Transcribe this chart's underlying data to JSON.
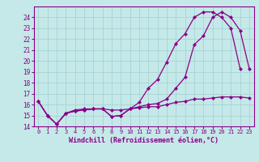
{
  "xlabel": "Windchill (Refroidissement éolien,°C)",
  "background_color": "#c5e8e8",
  "grid_color": "#a8d4d4",
  "line_color": "#880088",
  "x": [
    0,
    1,
    2,
    3,
    4,
    5,
    6,
    7,
    8,
    9,
    10,
    11,
    12,
    13,
    14,
    15,
    16,
    17,
    18,
    19,
    20,
    21,
    22,
    23
  ],
  "line1": [
    16.3,
    15.0,
    14.2,
    15.2,
    15.4,
    15.5,
    15.6,
    15.6,
    14.9,
    15.0,
    15.6,
    15.8,
    16.0,
    16.1,
    16.5,
    17.5,
    18.5,
    21.5,
    22.3,
    24.0,
    24.5,
    24.0,
    22.8,
    19.3
  ],
  "line2": [
    16.3,
    15.0,
    14.2,
    15.2,
    15.4,
    15.5,
    15.6,
    15.6,
    14.9,
    15.0,
    15.6,
    16.2,
    17.5,
    18.3,
    19.9,
    21.6,
    22.5,
    24.0,
    24.5,
    24.5,
    24.0,
    23.0,
    19.3,
    null
  ],
  "line3": [
    16.3,
    15.0,
    14.2,
    15.2,
    15.5,
    15.6,
    15.6,
    15.6,
    15.5,
    15.5,
    15.6,
    15.7,
    15.8,
    15.8,
    16.0,
    16.2,
    16.3,
    16.5,
    16.5,
    16.6,
    16.7,
    16.7,
    16.7,
    16.6
  ],
  "ylim": [
    14,
    25
  ],
  "xlim": [
    -0.5,
    23.5
  ],
  "yticks": [
    14,
    15,
    16,
    17,
    18,
    19,
    20,
    21,
    22,
    23,
    24
  ],
  "xticks": [
    0,
    1,
    2,
    3,
    4,
    5,
    6,
    7,
    8,
    9,
    10,
    11,
    12,
    13,
    14,
    15,
    16,
    17,
    18,
    19,
    20,
    21,
    22,
    23
  ]
}
